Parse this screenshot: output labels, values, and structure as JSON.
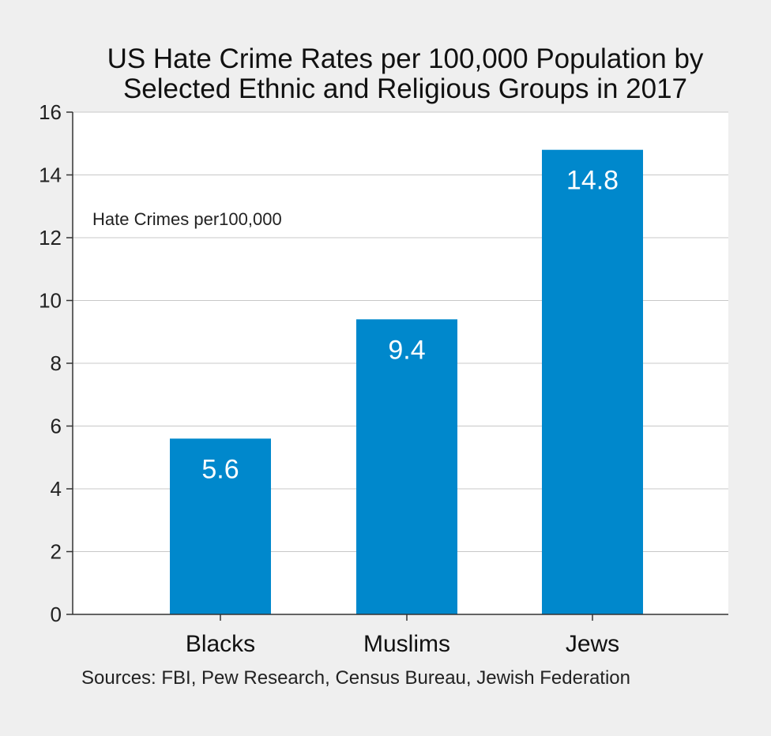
{
  "chart_data": {
    "type": "bar",
    "title": [
      "US Hate Crime Rates per 100,000 Population by",
      "Selected Ethnic and Religious Groups in 2017"
    ],
    "ylabel": "Hate Crimes per100,000",
    "xlabel": "",
    "categories": [
      "Blacks",
      "Muslims",
      "Jews"
    ],
    "values": [
      5.6,
      9.4,
      14.8
    ],
    "data_labels": [
      "5.6",
      "9.4",
      "14.8"
    ],
    "ylim": [
      0,
      16
    ],
    "yticks": [
      0,
      2,
      4,
      6,
      8,
      10,
      12,
      14,
      16
    ],
    "grid": true,
    "bar_color": "#0088cc",
    "plot_background": "#ffffff",
    "source": "Sources: FBI, Pew Research, Census Bureau, Jewish Federation"
  }
}
